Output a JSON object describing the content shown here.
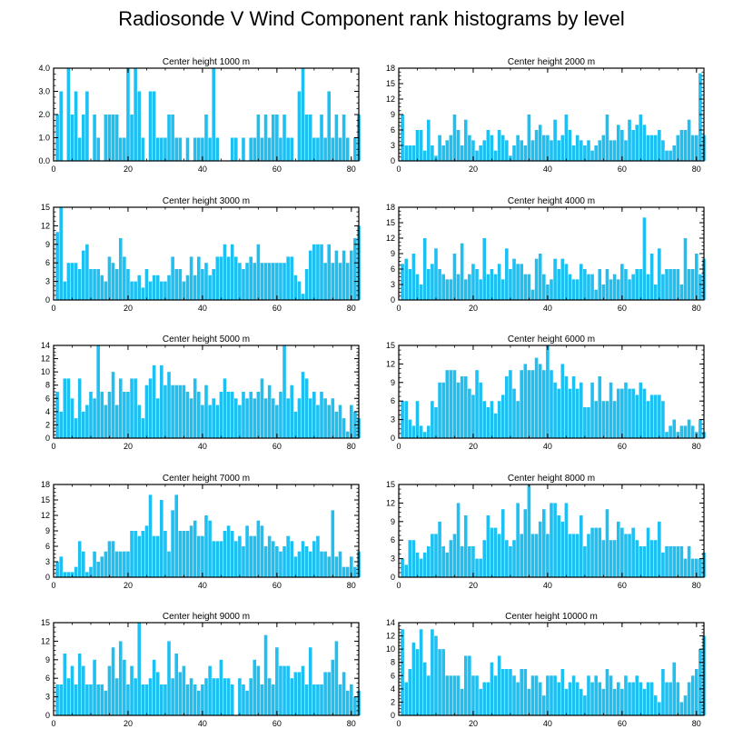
{
  "page": {
    "title": "Radiosonde V Wind Component rank histograms by level"
  },
  "chart_data": [
    {
      "type": "bar",
      "title": "Center height 1000 m",
      "xlim": [
        0,
        82
      ],
      "ylim": [
        0,
        4
      ],
      "xticks": [
        0,
        20,
        40,
        60,
        80
      ],
      "yticks": [
        "0.0",
        "1.0",
        "2.0",
        "3.0",
        "4.0"
      ],
      "ytick_values": [
        0,
        1,
        2,
        3,
        4
      ],
      "x_start": 1,
      "values": [
        2,
        3,
        0,
        4,
        2,
        3,
        1,
        2,
        3,
        0,
        2,
        1,
        0,
        2,
        2,
        2,
        2,
        1,
        1,
        4,
        2,
        4,
        3,
        1,
        0,
        3,
        3,
        1,
        1,
        1,
        2,
        2,
        1,
        1,
        0,
        1,
        0,
        1,
        1,
        1,
        2,
        1,
        4,
        1,
        0,
        0,
        0,
        1,
        1,
        0,
        1,
        0,
        1,
        1,
        2,
        1,
        2,
        1,
        2,
        2,
        1,
        2,
        1,
        1,
        0,
        3,
        4,
        2,
        2,
        1,
        1,
        2,
        1,
        3,
        1,
        2,
        1,
        2,
        1,
        0,
        1,
        2
      ]
    },
    {
      "type": "bar",
      "title": "Center height 2000 m",
      "xlim": [
        0,
        82
      ],
      "ylim": [
        0,
        18
      ],
      "xticks": [
        0,
        20,
        40,
        60,
        80
      ],
      "yticks": [
        "0",
        "3",
        "6",
        "9",
        "12",
        "15",
        "18"
      ],
      "ytick_values": [
        0,
        3,
        6,
        9,
        12,
        15,
        18
      ],
      "x_start": 1,
      "values": [
        9,
        3,
        3,
        3,
        6,
        6,
        2,
        8,
        3,
        1,
        5,
        3,
        4,
        5,
        9,
        6,
        3,
        8,
        5,
        4,
        2,
        3,
        4,
        6,
        5,
        2,
        6,
        5,
        4,
        1,
        3,
        5,
        4,
        3,
        9,
        4,
        6,
        7,
        5,
        5,
        4,
        8,
        4,
        5,
        9,
        6,
        3,
        5,
        4,
        3,
        4,
        2,
        3,
        4,
        5,
        9,
        4,
        4,
        7,
        6,
        4,
        8,
        6,
        7,
        9,
        7,
        5,
        5,
        5,
        6,
        4,
        2,
        2,
        3,
        5,
        6,
        6,
        8,
        5,
        5,
        17,
        5
      ]
    },
    {
      "type": "bar",
      "title": "Center height 3000 m",
      "xlim": [
        0,
        82
      ],
      "ylim": [
        0,
        15
      ],
      "xticks": [
        0,
        20,
        40,
        60,
        80
      ],
      "yticks": [
        "0",
        "3",
        "6",
        "9",
        "12",
        "15"
      ],
      "ytick_values": [
        0,
        3,
        6,
        9,
        12,
        15
      ],
      "x_start": 1,
      "values": [
        11,
        15,
        3,
        6,
        6,
        6,
        5,
        8,
        9,
        5,
        5,
        5,
        4,
        3,
        7,
        6,
        5,
        10,
        7,
        5,
        3,
        3,
        4,
        2,
        5,
        3,
        4,
        4,
        3,
        3,
        4,
        7,
        5,
        5,
        3,
        4,
        7,
        4,
        7,
        5,
        6,
        4,
        5,
        7,
        7,
        9,
        7,
        9,
        7,
        6,
        5,
        6,
        7,
        6,
        9,
        6,
        6,
        6,
        6,
        6,
        6,
        6,
        7,
        7,
        4,
        3,
        1,
        5,
        8,
        9,
        9,
        9,
        6,
        9,
        6,
        8,
        6,
        8,
        6,
        8,
        10,
        12
      ]
    },
    {
      "type": "bar",
      "title": "Center height 4000 m",
      "xlim": [
        0,
        82
      ],
      "ylim": [
        0,
        18
      ],
      "xticks": [
        0,
        20,
        40,
        60,
        80
      ],
      "yticks": [
        "0",
        "3",
        "6",
        "9",
        "12",
        "15",
        "18"
      ],
      "ytick_values": [
        0,
        3,
        6,
        9,
        12,
        15,
        18
      ],
      "x_start": 1,
      "values": [
        7,
        8,
        6,
        9,
        5,
        3,
        12,
        6,
        7,
        10,
        6,
        5,
        4,
        4,
        9,
        5,
        11,
        4,
        5,
        7,
        6,
        4,
        12,
        5,
        6,
        5,
        7,
        4,
        10,
        6,
        8,
        7,
        7,
        5,
        5,
        2,
        8,
        9,
        5,
        3,
        4,
        8,
        6,
        8,
        7,
        5,
        4,
        4,
        7,
        6,
        5,
        5,
        2,
        6,
        3,
        6,
        4,
        5,
        4,
        7,
        6,
        4,
        5,
        6,
        6,
        16,
        5,
        9,
        3,
        10,
        5,
        6,
        6,
        6,
        6,
        3,
        12,
        6,
        6,
        9,
        5,
        8
      ]
    },
    {
      "type": "bar",
      "title": "Center height 5000 m",
      "xlim": [
        0,
        82
      ],
      "ylim": [
        0,
        14
      ],
      "xticks": [
        0,
        20,
        40,
        60,
        80
      ],
      "yticks": [
        "0",
        "2",
        "4",
        "6",
        "8",
        "10",
        "12",
        "14"
      ],
      "ytick_values": [
        0,
        2,
        4,
        6,
        8,
        10,
        12,
        14
      ],
      "x_start": 1,
      "values": [
        7,
        4,
        9,
        9,
        6,
        3,
        9,
        4,
        5,
        7,
        6,
        14,
        7,
        5,
        7,
        10,
        5,
        9,
        7,
        7,
        9,
        9,
        5,
        3,
        8,
        9,
        11,
        6,
        11,
        8,
        10,
        8,
        8,
        8,
        8,
        7,
        6,
        9,
        7,
        5,
        8,
        5,
        6,
        5,
        7,
        9,
        7,
        7,
        6,
        5,
        7,
        6,
        7,
        6,
        7,
        9,
        6,
        8,
        6,
        5,
        7,
        14,
        6,
        8,
        4,
        6,
        10,
        9,
        6,
        7,
        5,
        7,
        6,
        5,
        6,
        4,
        5,
        3,
        1,
        5,
        4,
        3
      ]
    },
    {
      "type": "bar",
      "title": "Center height 6000 m",
      "xlim": [
        0,
        82
      ],
      "ylim": [
        0,
        15
      ],
      "xticks": [
        0,
        20,
        40,
        60,
        80
      ],
      "yticks": [
        "0",
        "3",
        "6",
        "9",
        "12",
        "15"
      ],
      "ytick_values": [
        0,
        3,
        6,
        9,
        12,
        15
      ],
      "x_start": 1,
      "values": [
        6,
        6,
        3,
        2,
        6,
        2,
        1,
        2,
        6,
        5,
        9,
        9,
        11,
        11,
        11,
        9,
        10,
        10,
        8,
        7,
        11,
        9,
        6,
        5,
        6,
        4,
        6,
        7,
        10,
        11,
        8,
        6,
        11,
        12,
        11,
        11,
        13,
        12,
        11,
        15,
        11,
        9,
        8,
        12,
        10,
        8,
        10,
        8,
        9,
        5,
        5,
        9,
        6,
        10,
        6,
        6,
        9,
        6,
        8,
        8,
        9,
        8,
        8,
        7,
        9,
        8,
        6,
        7,
        7,
        7,
        6,
        1,
        2,
        3,
        1,
        2,
        2,
        3,
        2,
        1,
        3,
        1
      ]
    },
    {
      "type": "bar",
      "title": "Center height 7000 m",
      "xlim": [
        0,
        82
      ],
      "ylim": [
        0,
        18
      ],
      "xticks": [
        0,
        20,
        40,
        60,
        80
      ],
      "yticks": [
        "0",
        "3",
        "6",
        "9",
        "12",
        "15",
        "18"
      ],
      "ytick_values": [
        0,
        3,
        6,
        9,
        12,
        15,
        18
      ],
      "x_start": 1,
      "values": [
        3,
        4,
        1,
        1,
        1,
        2,
        7,
        5,
        1,
        2,
        5,
        3,
        4,
        5,
        7,
        7,
        5,
        5,
        5,
        5,
        9,
        9,
        8,
        9,
        10,
        16,
        8,
        8,
        15,
        9,
        5,
        13,
        16,
        9,
        9,
        9,
        10,
        11,
        8,
        8,
        12,
        11,
        7,
        7,
        7,
        9,
        10,
        9,
        7,
        8,
        6,
        10,
        8,
        8,
        11,
        10,
        6,
        8,
        7,
        6,
        5,
        6,
        8,
        7,
        4,
        5,
        7,
        6,
        5,
        7,
        8,
        5,
        5,
        4,
        13,
        4,
        5,
        2,
        2,
        4,
        2,
        5
      ]
    },
    {
      "type": "bar",
      "title": "Center height 8000 m",
      "xlim": [
        0,
        82
      ],
      "ylim": [
        0,
        15
      ],
      "xticks": [
        0,
        20,
        40,
        60,
        80
      ],
      "yticks": [
        "0",
        "3",
        "6",
        "9",
        "12",
        "15"
      ],
      "ytick_values": [
        0,
        3,
        6,
        9,
        12,
        15
      ],
      "x_start": 1,
      "values": [
        3,
        2,
        6,
        6,
        4,
        3,
        4,
        5,
        7,
        7,
        9,
        5,
        4,
        6,
        7,
        12,
        5,
        10,
        5,
        5,
        3,
        3,
        6,
        10,
        8,
        8,
        7,
        11,
        6,
        5,
        6,
        12,
        7,
        11,
        15,
        7,
        7,
        9,
        11,
        7,
        12,
        12,
        10,
        9,
        12,
        7,
        7,
        7,
        10,
        5,
        7,
        8,
        8,
        8,
        6,
        11,
        6,
        6,
        9,
        8,
        7,
        7,
        8,
        6,
        5,
        5,
        8,
        6,
        6,
        9,
        4,
        5,
        5,
        5,
        5,
        5,
        3,
        5,
        3,
        3,
        3,
        4
      ]
    },
    {
      "type": "bar",
      "title": "Center height 9000 m",
      "xlim": [
        0,
        82
      ],
      "ylim": [
        0,
        15
      ],
      "xticks": [
        0,
        20,
        40,
        60,
        80
      ],
      "yticks": [
        "0",
        "3",
        "6",
        "9",
        "12",
        "15"
      ],
      "ytick_values": [
        0,
        3,
        6,
        9,
        12,
        15
      ],
      "x_start": 1,
      "values": [
        5,
        5,
        10,
        6,
        8,
        5,
        10,
        8,
        5,
        5,
        9,
        5,
        5,
        4,
        8,
        11,
        6,
        12,
        9,
        5,
        8,
        6,
        15,
        5,
        5,
        6,
        9,
        7,
        5,
        5,
        12,
        6,
        10,
        7,
        8,
        5,
        6,
        5,
        4,
        5,
        6,
        8,
        6,
        6,
        9,
        6,
        6,
        5,
        0,
        6,
        5,
        4,
        6,
        9,
        8,
        5,
        13,
        6,
        5,
        11,
        8,
        8,
        8,
        6,
        7,
        7,
        8,
        5,
        11,
        5,
        5,
        5,
        7,
        7,
        9,
        12,
        5,
        7,
        4,
        5,
        3,
        4
      ]
    },
    {
      "type": "bar",
      "title": "Center height 10000 m",
      "xlim": [
        0,
        82
      ],
      "ylim": [
        0,
        14
      ],
      "xticks": [
        0,
        20,
        40,
        60,
        80
      ],
      "yticks": [
        "0",
        "2",
        "4",
        "6",
        "8",
        "10",
        "12",
        "14"
      ],
      "ytick_values": [
        0,
        2,
        4,
        6,
        8,
        10,
        12,
        14
      ],
      "x_start": 1,
      "values": [
        13,
        5,
        7,
        11,
        10,
        13,
        8,
        6,
        13,
        12,
        10,
        10,
        6,
        6,
        6,
        6,
        4,
        9,
        9,
        6,
        6,
        4,
        5,
        5,
        8,
        6,
        9,
        7,
        7,
        7,
        6,
        5,
        7,
        7,
        4,
        6,
        6,
        5,
        3,
        6,
        6,
        6,
        5,
        7,
        4,
        5,
        6,
        5,
        4,
        3,
        6,
        5,
        6,
        5,
        4,
        7,
        6,
        4,
        5,
        4,
        6,
        5,
        5,
        6,
        5,
        4,
        5,
        5,
        3,
        2,
        7,
        5,
        5,
        8,
        5,
        2,
        3,
        5,
        6,
        7,
        10,
        12
      ]
    }
  ]
}
